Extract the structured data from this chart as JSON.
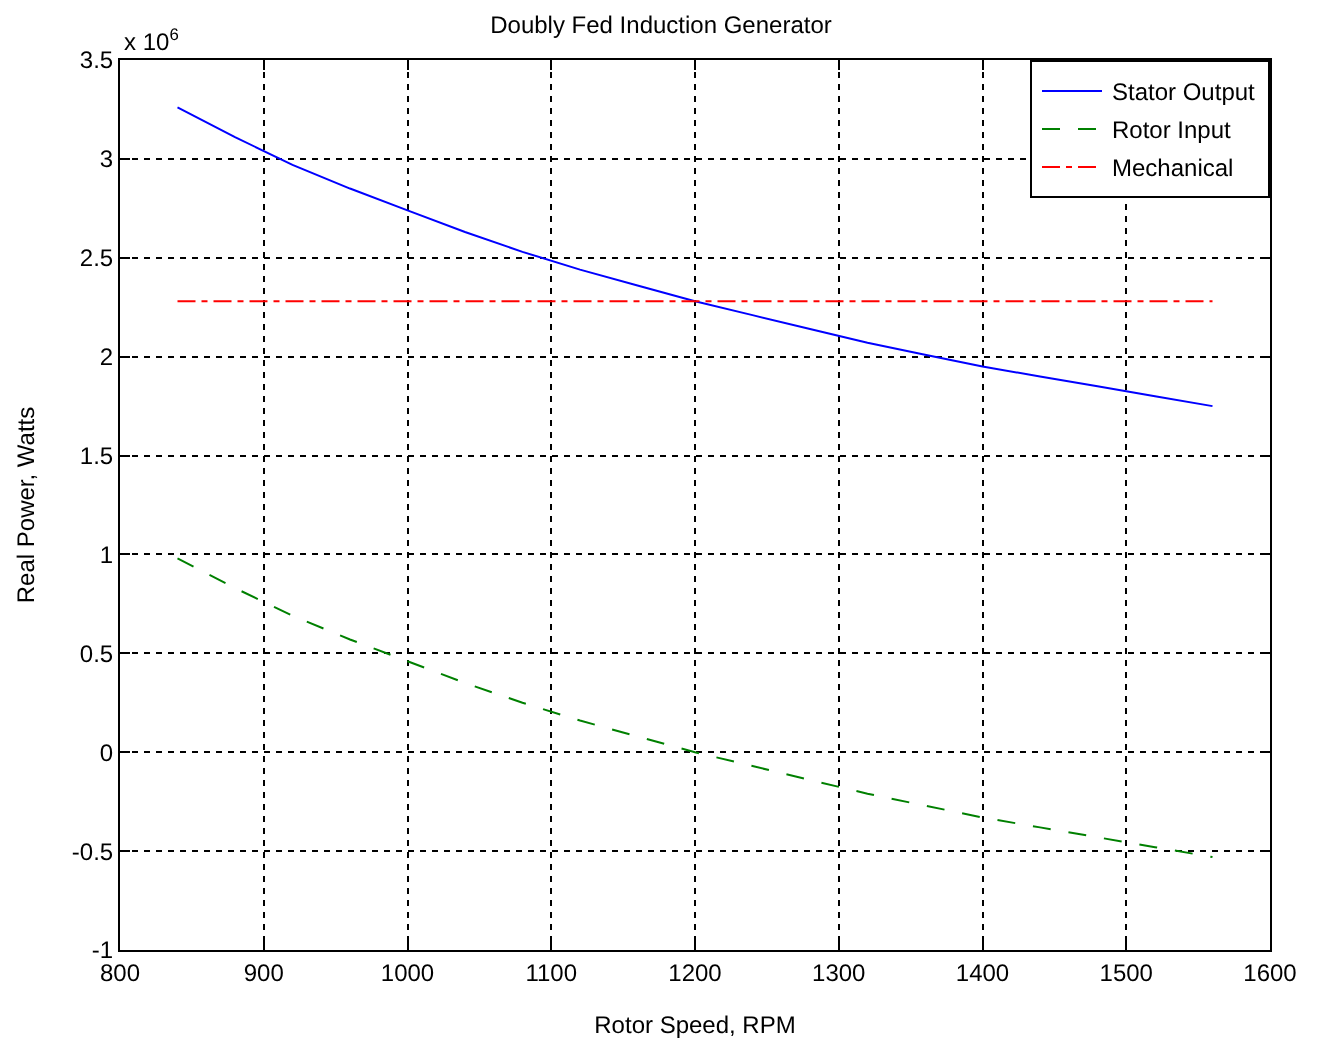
{
  "chart_data": {
    "type": "line",
    "title": "Doubly Fed Induction Generator",
    "xlabel": "Rotor Speed, RPM",
    "ylabel": "Real Power, Watts",
    "annotations": [
      "x 10$^{6}$"
    ],
    "x": [
      840,
      880,
      920,
      960,
      1000,
      1040,
      1080,
      1120,
      1160,
      1200,
      1240,
      1280,
      1320,
      1360,
      1400,
      1440,
      1480,
      1520,
      1560
    ],
    "series": [
      {
        "name": "Stator Output",
        "color": "#0000ff",
        "line_style": "solid",
        "values": [
          3.26,
          3.11,
          2.97,
          2.85,
          2.74,
          2.63,
          2.53,
          2.44,
          2.36,
          2.28,
          2.21,
          2.14,
          2.07,
          2.01,
          1.95,
          1.9,
          1.85,
          1.8,
          1.75
        ]
      },
      {
        "name": "Rotor Input",
        "color": "#008000",
        "line_style": "dashed",
        "values": [
          0.98,
          0.83,
          0.69,
          0.57,
          0.46,
          0.35,
          0.25,
          0.16,
          0.08,
          0.0,
          -0.07,
          -0.14,
          -0.21,
          -0.27,
          -0.33,
          -0.38,
          -0.43,
          -0.48,
          -0.53
        ]
      },
      {
        "name": "Mechanical",
        "color": "#ff0000",
        "line_style": "dashdot",
        "values": [
          2.28,
          2.28,
          2.28,
          2.28,
          2.28,
          2.28,
          2.28,
          2.28,
          2.28,
          2.28,
          2.28,
          2.28,
          2.28,
          2.28,
          2.28,
          2.28,
          2.28,
          2.28,
          2.28
        ]
      }
    ],
    "xlim": [
      800,
      1600
    ],
    "xticks": [
      800,
      900,
      1000,
      1100,
      1200,
      1300,
      1400,
      1500,
      1600
    ],
    "ylim": [
      -1,
      3.5
    ],
    "yticks": [
      -1,
      -0.5,
      0,
      0.5,
      1,
      1.5,
      2,
      2.5,
      3,
      3.5
    ],
    "grid": true,
    "legend": "top right",
    "marker": "none"
  }
}
